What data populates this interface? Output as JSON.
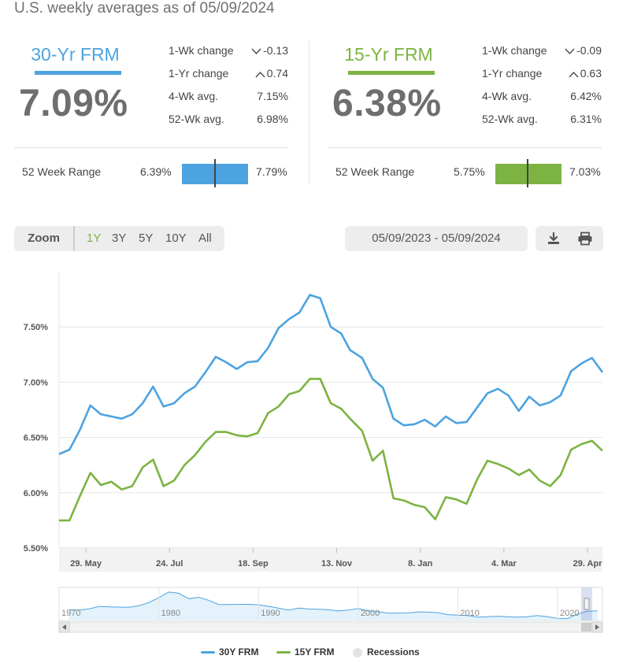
{
  "header": {
    "subtitle": "U.S. weekly averages as of 05/09/2024"
  },
  "cards": [
    {
      "name": "30-Yr FRM",
      "color": "#4da3e0",
      "rate": "7.09%",
      "stats": [
        {
          "label": "1-Wk change",
          "value": "-0.13",
          "arrow": "down"
        },
        {
          "label": "1-Yr change",
          "value": "0.74",
          "arrow": "up"
        },
        {
          "label": "4-Wk avg.",
          "value": "7.15%",
          "arrow": ""
        },
        {
          "label": "52-Wk avg.",
          "value": "6.98%",
          "arrow": ""
        }
      ],
      "range": {
        "label": "52 Week Range",
        "low": "6.39%",
        "high": "7.79%",
        "current_value": 7.09,
        "min": 6.39,
        "max": 7.79
      }
    },
    {
      "name": "15-Yr FRM",
      "color": "#7cb342",
      "rate": "6.38%",
      "stats": [
        {
          "label": "1-Wk change",
          "value": "-0.09",
          "arrow": "down"
        },
        {
          "label": "1-Yr change",
          "value": "0.63",
          "arrow": "up"
        },
        {
          "label": "4-Wk avg.",
          "value": "6.42%",
          "arrow": ""
        },
        {
          "label": "52-Wk avg.",
          "value": "6.31%",
          "arrow": ""
        }
      ],
      "range": {
        "label": "52 Week Range",
        "low": "5.75%",
        "high": "7.03%",
        "current_value": 6.38,
        "min": 5.75,
        "max": 7.03
      }
    }
  ],
  "toolbar": {
    "zoom_label": "Zoom",
    "zoom_options": [
      "1Y",
      "3Y",
      "5Y",
      "10Y",
      "All"
    ],
    "active_zoom": "1Y",
    "date_range": "05/09/2023 - 05/09/2024",
    "download_icon": "download-icon",
    "print_icon": "printer-icon"
  },
  "legend": {
    "items": [
      "30Y FRM",
      "15Y FRM",
      "Recessions"
    ]
  },
  "colors": {
    "series_30": "#4da3e0",
    "series_15": "#7cb342",
    "active_zoom": "#7cb342",
    "grid": "#e6e6e6",
    "navigator_fill": "#e4f2fb"
  },
  "chart_data": [
    {
      "type": "line",
      "x_unit": "weekly dates, 05/11/2023 - 05/09/2024",
      "x_tick_labels": [
        "29. May",
        "24. Jul",
        "18. Sep",
        "13. Nov",
        "8. Jan",
        "4. Mar",
        "29. Apr"
      ],
      "x_tick_dates": [
        "2023-05-29",
        "2023-07-24",
        "2023-09-18",
        "2023-11-13",
        "2024-01-08",
        "2024-03-04",
        "2024-04-29"
      ],
      "y_tick_labels": [
        "5.50%",
        "6.00%",
        "6.50%",
        "7.00%",
        "7.50%"
      ],
      "y_ticks": [
        5.5,
        6.0,
        6.5,
        7.0,
        7.5
      ],
      "ylim": [
        5.5,
        8.0
      ],
      "grid": true,
      "x": [
        "2023-05-11",
        "2023-05-18",
        "2023-05-25",
        "2023-06-01",
        "2023-06-08",
        "2023-06-15",
        "2023-06-22",
        "2023-06-29",
        "2023-07-06",
        "2023-07-13",
        "2023-07-20",
        "2023-07-27",
        "2023-08-03",
        "2023-08-10",
        "2023-08-17",
        "2023-08-24",
        "2023-08-31",
        "2023-09-07",
        "2023-09-14",
        "2023-09-21",
        "2023-09-28",
        "2023-10-05",
        "2023-10-12",
        "2023-10-19",
        "2023-10-26",
        "2023-11-02",
        "2023-11-09",
        "2023-11-16",
        "2023-11-22",
        "2023-11-30",
        "2023-12-07",
        "2023-12-14",
        "2023-12-21",
        "2023-12-28",
        "2024-01-04",
        "2024-01-11",
        "2024-01-18",
        "2024-01-25",
        "2024-02-01",
        "2024-02-08",
        "2024-02-15",
        "2024-02-22",
        "2024-02-29",
        "2024-03-07",
        "2024-03-14",
        "2024-03-21",
        "2024-03-28",
        "2024-04-04",
        "2024-04-11",
        "2024-04-18",
        "2024-04-25",
        "2024-05-02",
        "2024-05-09"
      ],
      "series": [
        {
          "name": "30Y FRM",
          "color": "#4da3e0",
          "values": [
            6.35,
            6.39,
            6.57,
            6.79,
            6.71,
            6.69,
            6.67,
            6.71,
            6.81,
            6.96,
            6.78,
            6.81,
            6.9,
            6.96,
            7.09,
            7.23,
            7.18,
            7.12,
            7.18,
            7.19,
            7.31,
            7.49,
            7.57,
            7.63,
            7.79,
            7.76,
            7.5,
            7.44,
            7.29,
            7.22,
            7.03,
            6.95,
            6.67,
            6.61,
            6.62,
            6.66,
            6.6,
            6.69,
            6.63,
            6.64,
            6.77,
            6.9,
            6.94,
            6.88,
            6.74,
            6.87,
            6.79,
            6.82,
            6.88,
            7.1,
            7.17,
            7.22,
            7.09
          ]
        },
        {
          "name": "15Y FRM",
          "color": "#7cb342",
          "values": [
            5.75,
            5.75,
            5.97,
            6.18,
            6.07,
            6.1,
            6.03,
            6.06,
            6.23,
            6.3,
            6.06,
            6.11,
            6.25,
            6.34,
            6.46,
            6.55,
            6.55,
            6.52,
            6.51,
            6.54,
            6.72,
            6.78,
            6.89,
            6.92,
            7.03,
            7.03,
            6.81,
            6.76,
            6.67,
            6.56,
            6.29,
            6.38,
            5.95,
            5.93,
            5.89,
            5.87,
            5.76,
            5.96,
            5.94,
            5.9,
            6.12,
            6.29,
            6.26,
            6.22,
            6.16,
            6.21,
            6.11,
            6.06,
            6.16,
            6.39,
            6.44,
            6.47,
            6.38
          ]
        }
      ]
    },
    {
      "type": "area",
      "role": "navigator",
      "x_tick_labels": [
        "1970",
        "1980",
        "1990",
        "2000",
        "2010",
        "2020"
      ],
      "x": [
        1971,
        1972,
        1973,
        1974,
        1975,
        1976,
        1977,
        1978,
        1979,
        1980,
        1981,
        1982,
        1983,
        1984,
        1985,
        1986,
        1987,
        1988,
        1989,
        1990,
        1991,
        1992,
        1993,
        1994,
        1995,
        1996,
        1997,
        1998,
        1999,
        2000,
        2001,
        2002,
        2003,
        2004,
        2005,
        2006,
        2007,
        2008,
        2009,
        2010,
        2011,
        2012,
        2013,
        2014,
        2015,
        2016,
        2017,
        2018,
        2019,
        2020,
        2021,
        2022,
        2023,
        2024
      ],
      "series": [
        {
          "name": "30Y FRM",
          "color": "#4da3e0",
          "values": [
            7.5,
            7.4,
            8.0,
            9.2,
            9.0,
            8.9,
            8.8,
            9.6,
            11.2,
            13.7,
            16.6,
            16.0,
            13.2,
            13.9,
            12.4,
            10.2,
            10.2,
            10.3,
            10.3,
            10.1,
            9.3,
            8.4,
            7.3,
            8.4,
            7.9,
            7.8,
            7.6,
            6.9,
            7.4,
            8.1,
            7.0,
            6.5,
            5.8,
            5.8,
            5.9,
            6.4,
            6.3,
            6.0,
            5.0,
            4.7,
            4.5,
            3.7,
            4.0,
            4.2,
            3.9,
            3.7,
            4.0,
            4.5,
            3.9,
            3.1,
            3.0,
            5.3,
            6.8,
            6.9
          ]
        }
      ]
    }
  ]
}
